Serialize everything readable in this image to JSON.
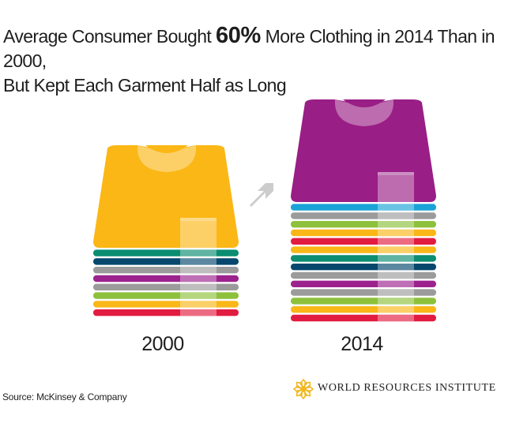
{
  "title": {
    "prefix": "Average Consumer Bought ",
    "highlight": "60%",
    "suffix": " More Clothing in 2014 Than in 2000,",
    "line2": "But Kept Each Garment Half as Long"
  },
  "stacks": [
    {
      "year": "2000",
      "top_shirt_color": "#fbb716",
      "band_colors": [
        "#0a8d71",
        "#06476e",
        "#9b9b9b",
        "#9c238e",
        "#9b9b9b",
        "#8dc13b",
        "#f9b718",
        "#e21c40"
      ]
    },
    {
      "year": "2014",
      "top_shirt_color": "#991e85",
      "band_colors": [
        "#1aa3d6",
        "#9b9b9b",
        "#8dc13b",
        "#f9b718",
        "#e21c40",
        "#f9b718",
        "#0a8d71",
        "#06476e",
        "#9b9b9b",
        "#9c238e",
        "#9b9b9b",
        "#8dc13b",
        "#f9b718",
        "#e21c40"
      ]
    }
  ],
  "source": "Source: McKinsey & Company",
  "logo": {
    "text": "WORLD RESOURCES INSTITUTE",
    "color": "#f2b722",
    "icon": "wri-lattice-icon"
  },
  "arrow_color": "#cccccc"
}
